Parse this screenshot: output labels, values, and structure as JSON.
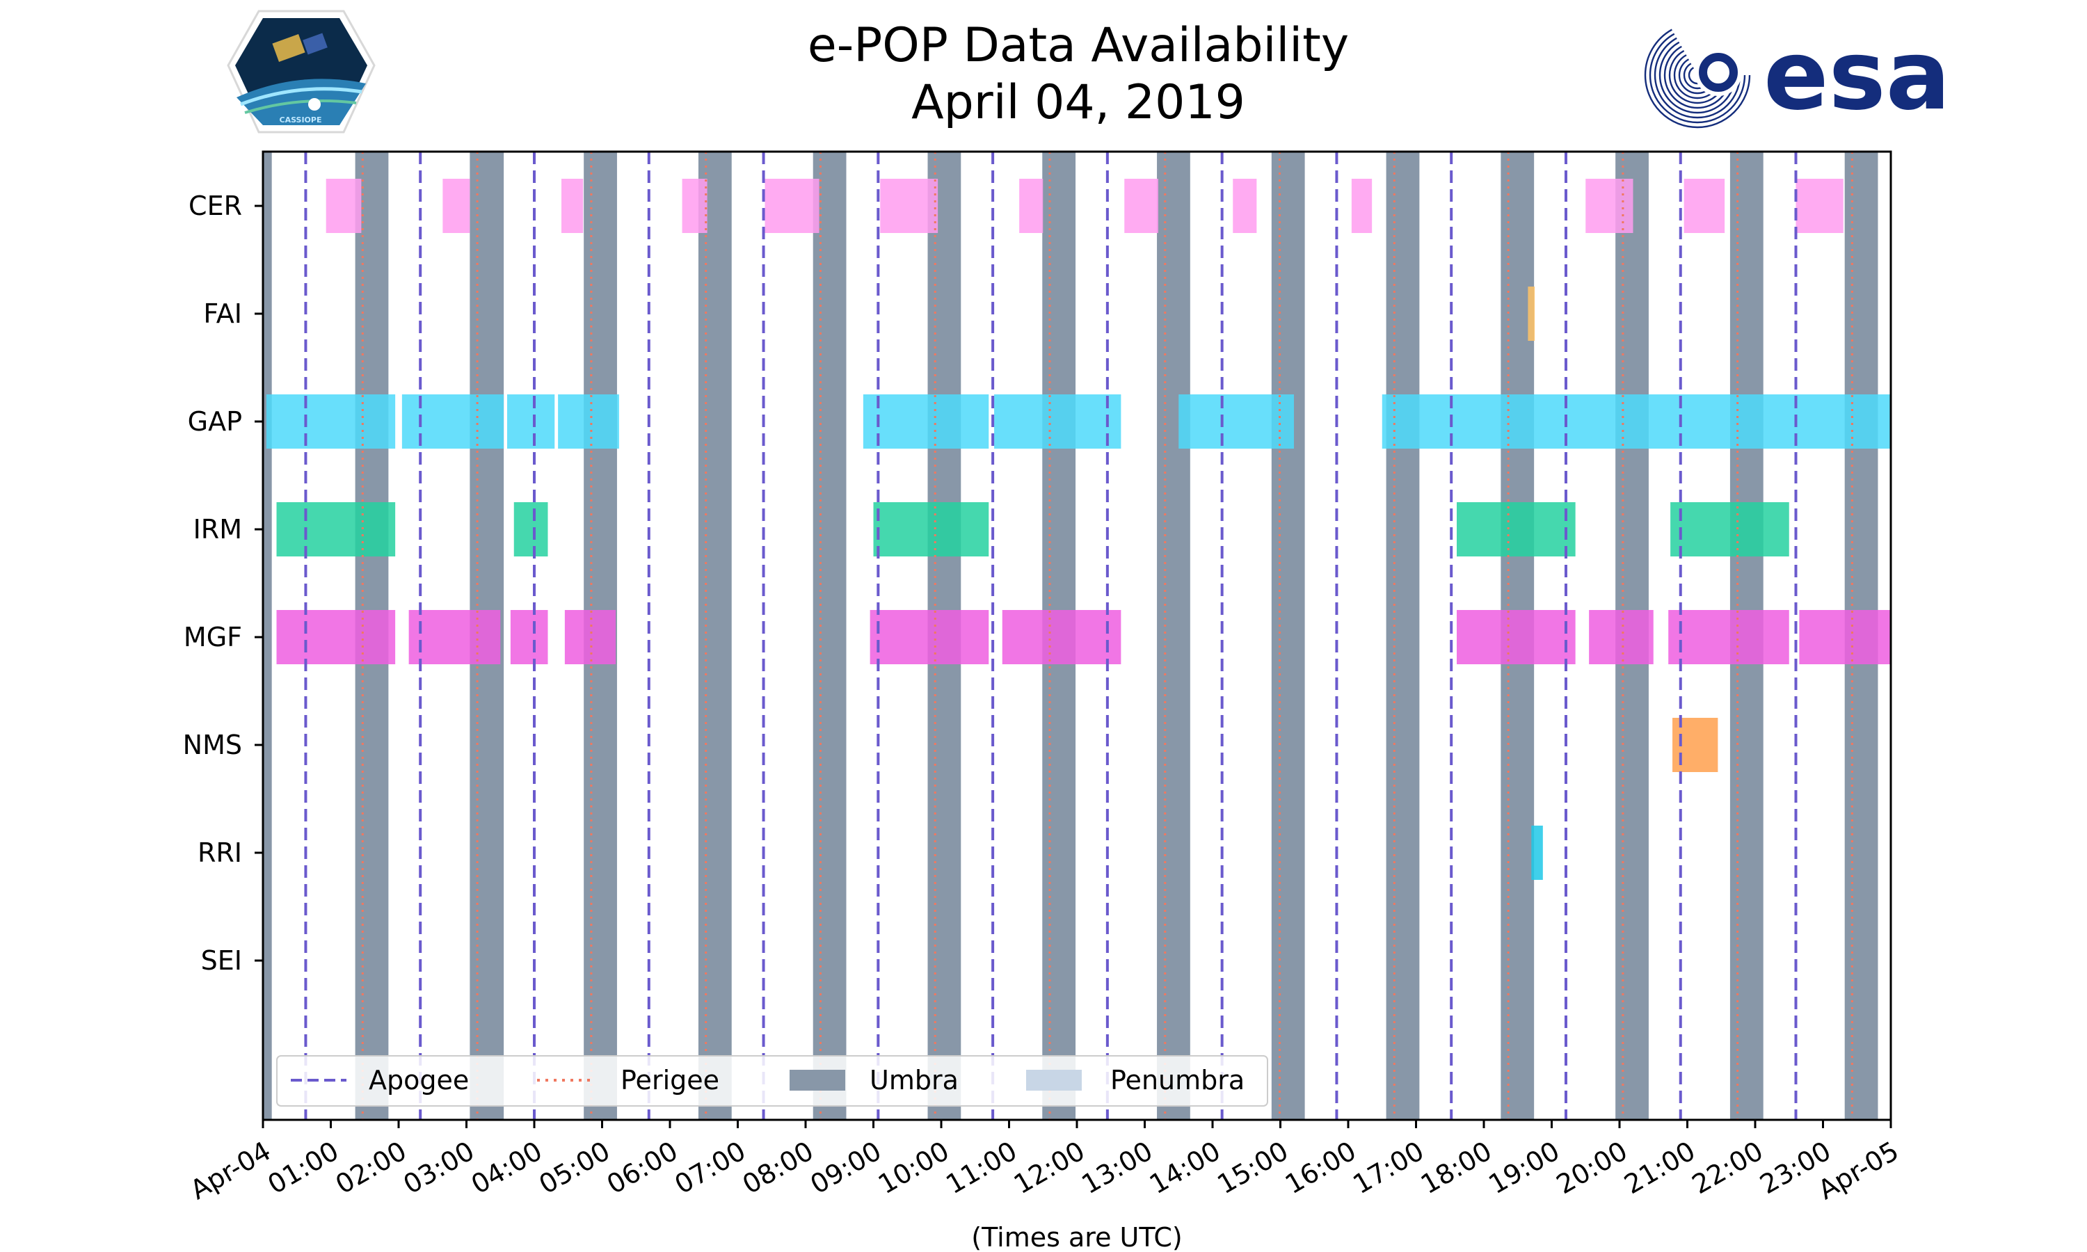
{
  "chart_data": {
    "type": "timeline",
    "title": "e-POP Data Availability",
    "subtitle": "April 04, 2019",
    "xlabel": "(Times are UTC)",
    "x_unit": "hours UTC",
    "x_range": [
      0,
      24
    ],
    "x_ticks": [
      {
        "h": 0,
        "label": "Apr-04"
      },
      {
        "h": 1,
        "label": "01:00"
      },
      {
        "h": 2,
        "label": "02:00"
      },
      {
        "h": 3,
        "label": "03:00"
      },
      {
        "h": 4,
        "label": "04:00"
      },
      {
        "h": 5,
        "label": "05:00"
      },
      {
        "h": 6,
        "label": "06:00"
      },
      {
        "h": 7,
        "label": "07:00"
      },
      {
        "h": 8,
        "label": "08:00"
      },
      {
        "h": 9,
        "label": "09:00"
      },
      {
        "h": 10,
        "label": "10:00"
      },
      {
        "h": 11,
        "label": "11:00"
      },
      {
        "h": 12,
        "label": "12:00"
      },
      {
        "h": 13,
        "label": "13:00"
      },
      {
        "h": 14,
        "label": "14:00"
      },
      {
        "h": 15,
        "label": "15:00"
      },
      {
        "h": 16,
        "label": "16:00"
      },
      {
        "h": 17,
        "label": "17:00"
      },
      {
        "h": 18,
        "label": "18:00"
      },
      {
        "h": 19,
        "label": "19:00"
      },
      {
        "h": 20,
        "label": "20:00"
      },
      {
        "h": 21,
        "label": "21:00"
      },
      {
        "h": 22,
        "label": "22:00"
      },
      {
        "h": 23,
        "label": "23:00"
      },
      {
        "h": 24,
        "label": "Apr-05"
      }
    ],
    "instruments": [
      {
        "name": "CER",
        "color": "#ff9cf0",
        "intervals": [
          [
            0.93,
            1.45
          ],
          [
            2.65,
            3.05
          ],
          [
            4.4,
            4.72
          ],
          [
            6.18,
            6.55
          ],
          [
            7.4,
            8.2
          ],
          [
            9.1,
            9.95
          ],
          [
            11.15,
            11.5
          ],
          [
            12.7,
            13.2
          ],
          [
            14.3,
            14.65
          ],
          [
            16.05,
            16.35
          ],
          [
            19.5,
            20.2
          ],
          [
            20.95,
            21.55
          ],
          [
            22.6,
            23.3
          ]
        ]
      },
      {
        "name": "FAI",
        "color": "#ffc266",
        "intervals": [
          [
            18.65,
            18.75
          ]
        ]
      },
      {
        "name": "GAP",
        "color": "#4dd9fa",
        "intervals": [
          [
            0.05,
            1.95
          ],
          [
            2.05,
            3.55
          ],
          [
            3.6,
            4.3
          ],
          [
            4.35,
            5.25
          ],
          [
            8.85,
            10.7
          ],
          [
            10.78,
            12.65
          ],
          [
            13.5,
            15.2
          ],
          [
            16.5,
            24.0
          ]
        ]
      },
      {
        "name": "IRM",
        "color": "#24d1a0",
        "intervals": [
          [
            0.2,
            1.95
          ],
          [
            3.7,
            4.2
          ],
          [
            9.0,
            10.7
          ],
          [
            17.6,
            19.35
          ],
          [
            20.75,
            22.5
          ]
        ]
      },
      {
        "name": "MGF",
        "color": "#ee5ee0",
        "intervals": [
          [
            0.2,
            1.95
          ],
          [
            2.15,
            3.5
          ],
          [
            3.65,
            4.2
          ],
          [
            4.45,
            5.2
          ],
          [
            8.95,
            10.7
          ],
          [
            10.9,
            12.65
          ],
          [
            17.6,
            19.35
          ],
          [
            19.55,
            20.5
          ],
          [
            20.72,
            22.5
          ],
          [
            22.65,
            24.0
          ]
        ]
      },
      {
        "name": "NMS",
        "color": "#ffa04d",
        "intervals": [
          [
            20.78,
            21.45
          ]
        ]
      },
      {
        "name": "RRI",
        "color": "#1ec8e8",
        "intervals": [
          [
            18.7,
            18.87
          ]
        ]
      },
      {
        "name": "SEI",
        "color": "#cccccc",
        "intervals": []
      }
    ],
    "apogee_hours": [
      0.63,
      2.32,
      4.0,
      5.69,
      7.38,
      9.07,
      10.76,
      12.45,
      14.14,
      15.83,
      17.52,
      19.21,
      20.9,
      22.6
    ],
    "perigee_hours": [
      1.47,
      3.16,
      4.84,
      6.53,
      8.22,
      9.91,
      11.6,
      13.3,
      14.99,
      16.68,
      18.36,
      20.05,
      21.74,
      23.43
    ],
    "umbra_intervals": [
      [
        0.0,
        0.13
      ],
      [
        1.36,
        1.85
      ],
      [
        3.05,
        3.55
      ],
      [
        4.73,
        5.22
      ],
      [
        6.42,
        6.91
      ],
      [
        8.11,
        8.6
      ],
      [
        9.8,
        10.29
      ],
      [
        11.49,
        11.98
      ],
      [
        13.18,
        13.67
      ],
      [
        14.87,
        15.36
      ],
      [
        16.56,
        17.05
      ],
      [
        18.25,
        18.74
      ],
      [
        19.94,
        20.43
      ],
      [
        21.63,
        22.12
      ],
      [
        23.32,
        23.81
      ]
    ],
    "legend": {
      "position": "lower-left",
      "entries": [
        {
          "label": "Apogee",
          "style": "dashed",
          "color": "#6a5acd"
        },
        {
          "label": "Perigee",
          "style": "dotted",
          "color": "#f07860"
        },
        {
          "label": "Umbra",
          "style": "patch",
          "color": "#8897a8"
        },
        {
          "label": "Penumbra",
          "style": "patch",
          "color": "#c8d6e6"
        }
      ]
    }
  },
  "logos": {
    "left_text": "CASSIOPE",
    "right_text": "esa",
    "right_color": "#142d7c"
  }
}
